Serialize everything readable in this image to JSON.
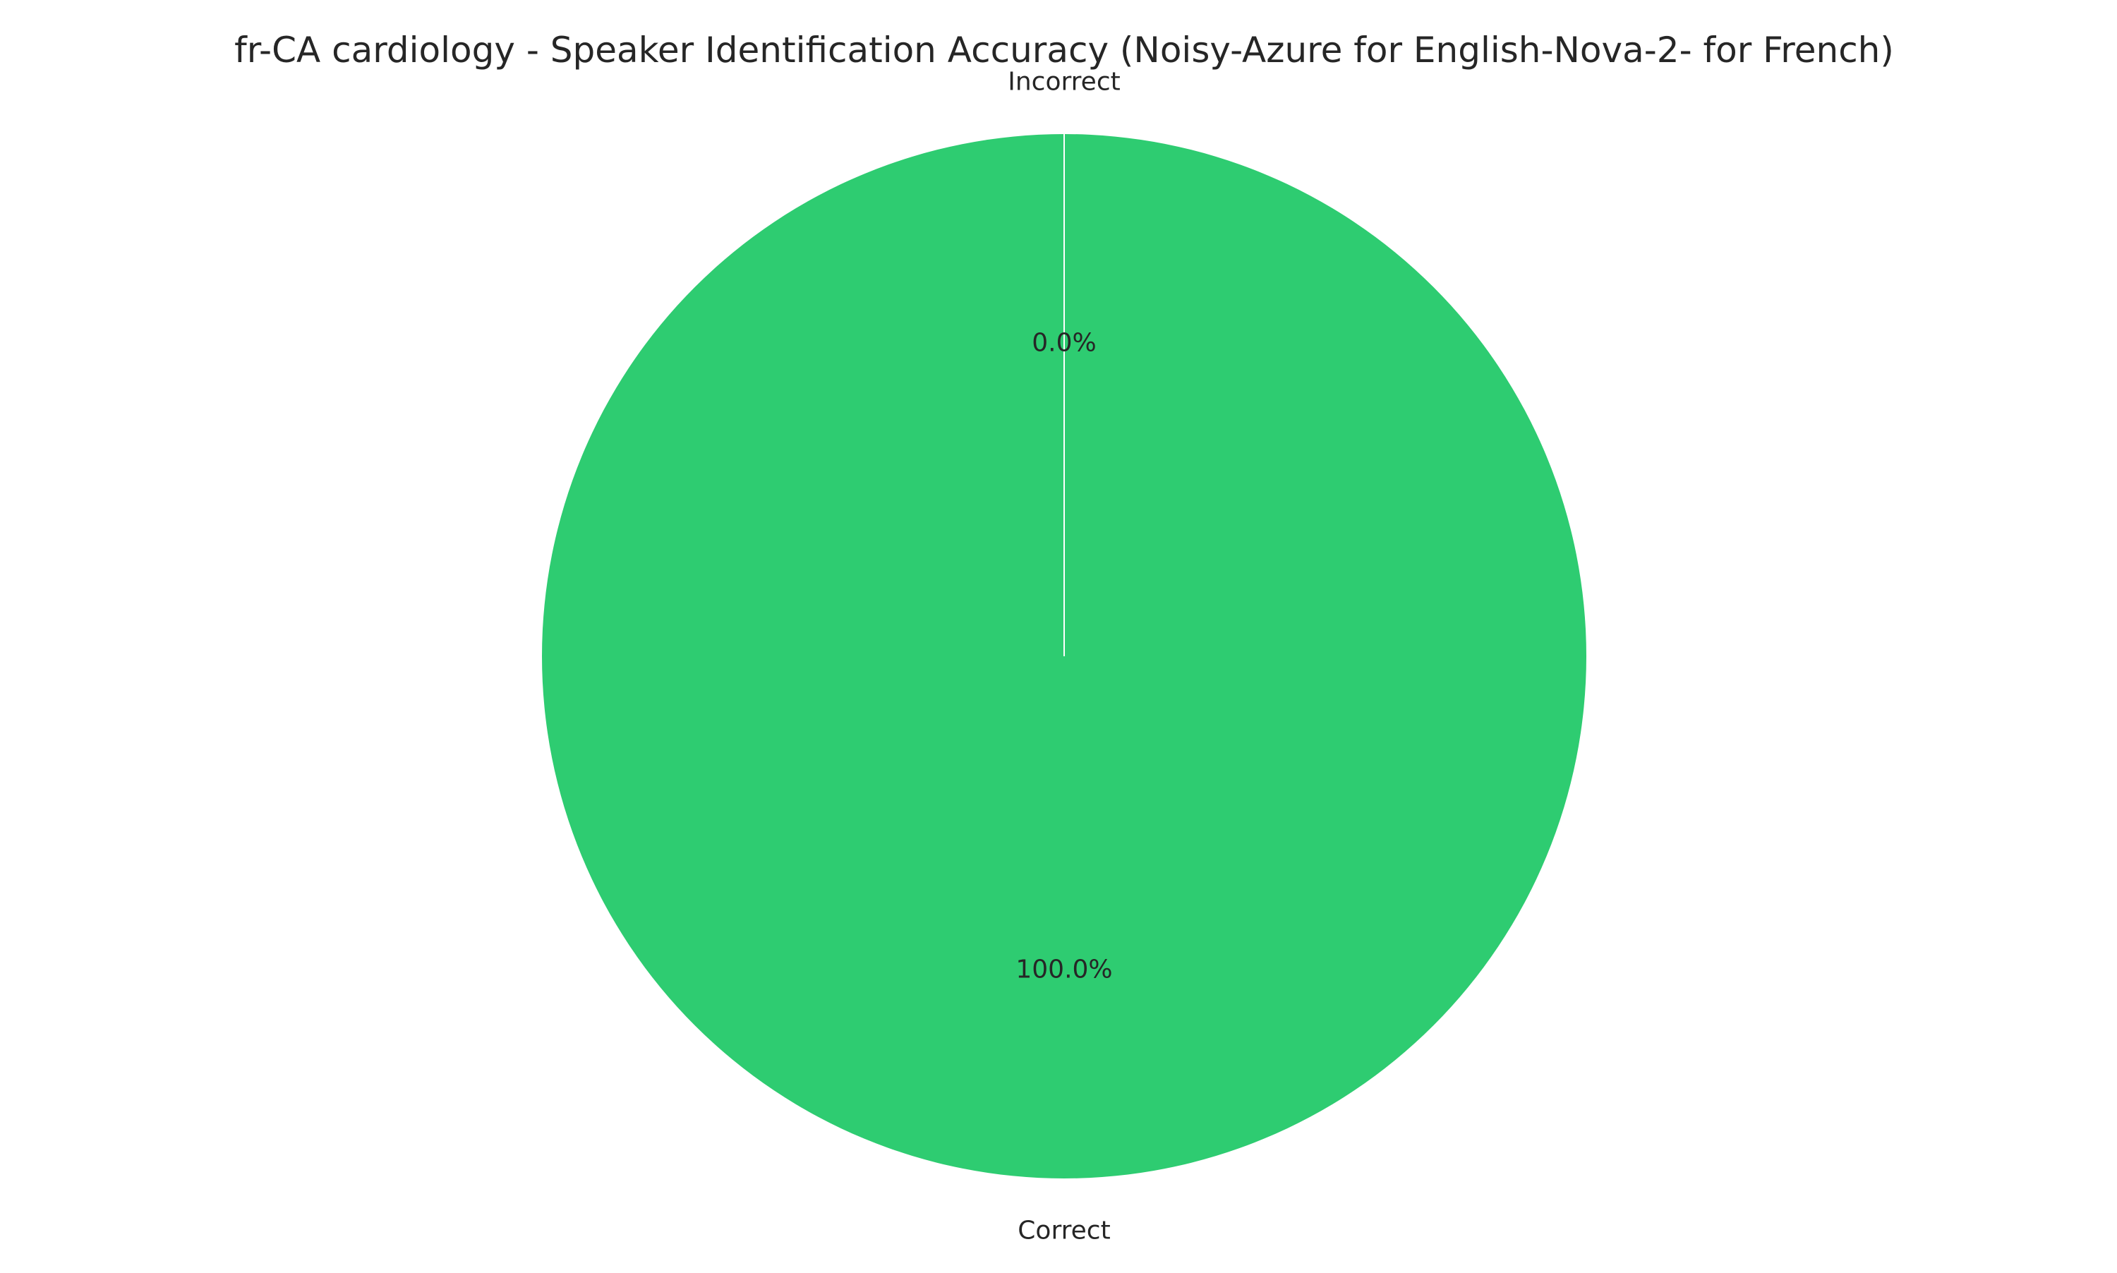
{
  "chart_data": {
    "type": "pie",
    "title": "fr-CA cardiology - Speaker Identification Accuracy (Noisy-Azure for English-Nova-2- for French)",
    "categories": [
      "Correct",
      "Incorrect"
    ],
    "values": [
      100.0,
      0.0
    ],
    "percent_labels": [
      "100.0%",
      "0.0%"
    ],
    "colors": [
      "#2ecc71",
      "#e74c3c"
    ],
    "start_angle_deg": 90,
    "counterclockwise": true,
    "legend": "none",
    "grid": false
  }
}
